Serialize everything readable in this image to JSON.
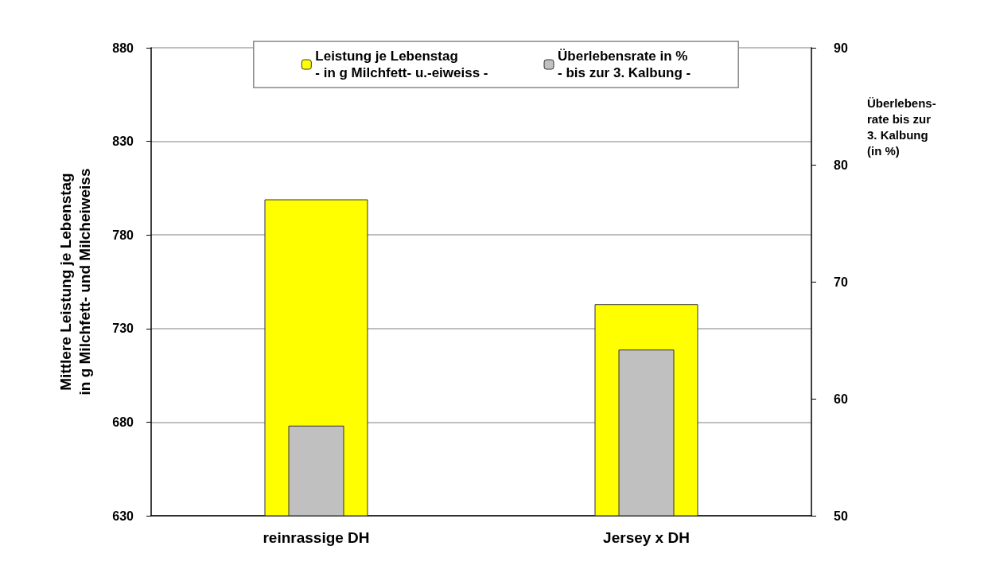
{
  "chart_data": {
    "type": "bar",
    "categories": [
      "reinrassige DH",
      "Jersey x DH"
    ],
    "series": [
      {
        "name": "Leistung je Lebenstag\n- in g Milchfett- u.-eiweiss -",
        "color": "#ffff00",
        "values": [
          799,
          743
        ]
      },
      {
        "name": "Überlebensrate in %\n- bis zur 3. Kalbung -",
        "color": "#c0c0c0",
        "values": [
          57.7,
          64.2
        ],
        "axis": "y2"
      }
    ],
    "ylabel": "Mittlere Leistung je Lebenstag\nin g Milchfett- und Milcheiweiss",
    "y2label": "Überlebens-\nrate bis zur\n3. Kalbung\n(in %)",
    "ylim": [
      630,
      880
    ],
    "yticks": [
      630,
      680,
      730,
      780,
      830,
      880
    ],
    "y2lim": [
      50,
      90
    ],
    "y2ticks": [
      50,
      60,
      70,
      80,
      90
    ],
    "grid": "y",
    "legend": "top"
  }
}
